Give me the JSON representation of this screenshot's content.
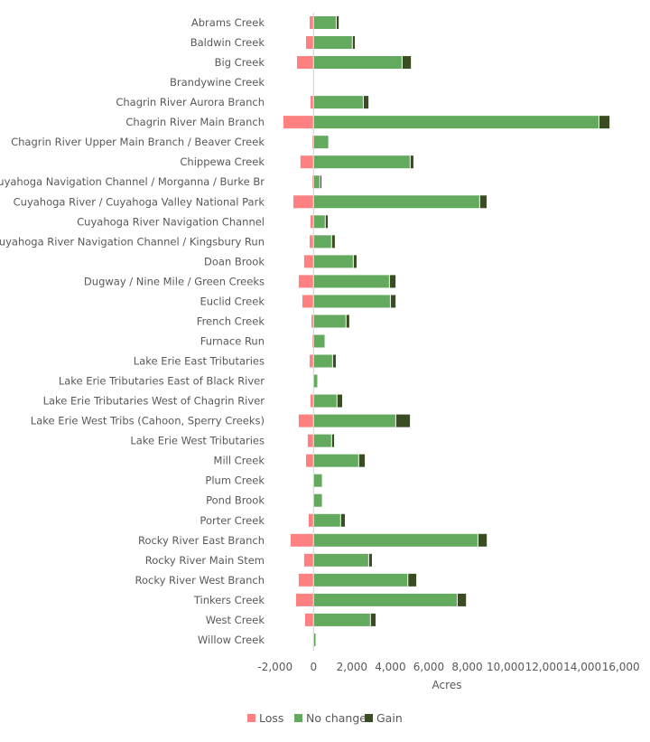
{
  "chart_data": {
    "type": "bar",
    "orientation": "horizontal",
    "stacked": true,
    "xlabel": "Acres",
    "xlim": [
      -2000,
      16000
    ],
    "xticks": [
      -2000,
      0,
      2000,
      4000,
      6000,
      8000,
      10000,
      12000,
      14000,
      16000
    ],
    "xtick_labels": [
      "-2,000",
      "0",
      "2,000",
      "4,000",
      "6,000",
      "8,000",
      "10,000",
      "12,000",
      "14,000",
      "16,000"
    ],
    "grid": false,
    "legend_position": "bottom",
    "categories": [
      "Abrams Creek",
      "Baldwin Creek",
      "Big Creek",
      "Brandywine Creek",
      "Chagrin River Aurora Branch",
      "Chagrin River Main Branch",
      "Chagrin River Upper Main Branch / Beaver Creek",
      "Chippewa Creek",
      "Cuyahoga Navigation Channel / Morganna / Burke Br",
      "Cuyahoga River / Cuyahoga Valley National Park",
      "Cuyahoga River Navigation Channel",
      "Cuyahoga River Navigation Channel / Kingsbury Run",
      "Doan Brook",
      "Dugway / Nine Mile / Green Creeks",
      "Euclid Creek",
      "French Creek",
      "Furnace Run",
      "Lake Erie East Tributaries",
      "Lake Erie Tributaries East of Black River",
      "Lake Erie Tributaries West of Chagrin River",
      "Lake Erie West Tribs (Cahoon, Sperry Creeks)",
      "Lake Erie West Tributaries",
      "Mill Creek",
      "Plum Creek",
      "Pond Brook",
      "Porter Creek",
      "Rocky River East Branch",
      "Rocky River Main Stem",
      "Rocky River West Branch",
      "Tinkers Creek",
      "West Creek",
      "Willow Creek"
    ],
    "series": [
      {
        "name": "Loss",
        "color": "#ff8080",
        "values": [
          -200,
          -390,
          -860,
          0,
          -160,
          -1570,
          -60,
          -680,
          -60,
          -1050,
          -160,
          -200,
          -490,
          -770,
          -580,
          -110,
          -60,
          -200,
          0,
          -160,
          -770,
          -300,
          -390,
          0,
          0,
          -250,
          -1190,
          -490,
          -770,
          -910,
          -440,
          0
        ]
      },
      {
        "name": "No change",
        "color": "#63a95e",
        "values": [
          1180,
          2020,
          4610,
          0,
          2590,
          14860,
          790,
          5030,
          330,
          8650,
          610,
          940,
          2070,
          3950,
          4000,
          1690,
          600,
          990,
          220,
          1220,
          4280,
          940,
          2350,
          460,
          460,
          1410,
          8560,
          2870,
          4910,
          7480,
          2960,
          130
        ]
      },
      {
        "name": "Gain",
        "color": "#3a4d22",
        "values": [
          130,
          130,
          460,
          0,
          270,
          550,
          0,
          170,
          80,
          360,
          130,
          170,
          170,
          320,
          270,
          170,
          0,
          170,
          0,
          270,
          740,
          130,
          320,
          0,
          0,
          220,
          460,
          170,
          440,
          460,
          270,
          0
        ]
      }
    ]
  }
}
